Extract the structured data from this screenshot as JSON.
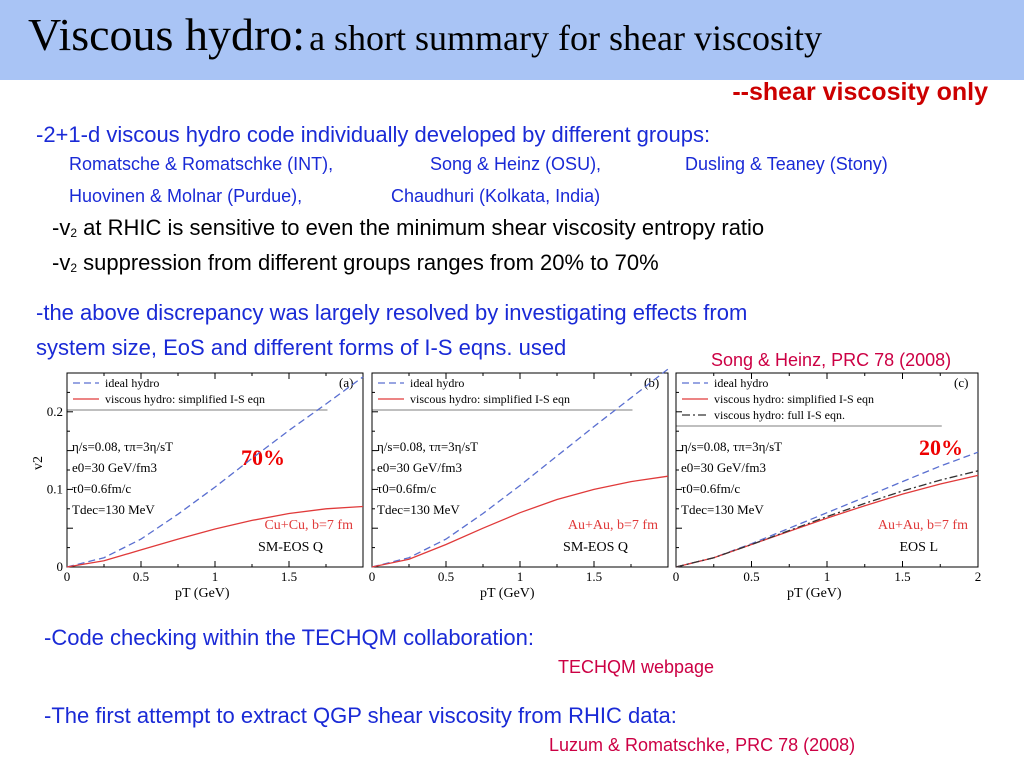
{
  "slide": {
    "title_main": "Viscous hydro:",
    "title_sub": "a short summary for shear viscosity",
    "subtitle": "--shear viscosity only",
    "line1": "-2+1-d viscous hydro code individually developed by different groups:",
    "groups_row1": [
      "Romatsche & Romatschke (INT),",
      "Song & Heinz (OSU),",
      "Dusling & Teaney (Stony)"
    ],
    "groups_row2": [
      "Huovinen & Molnar (Purdue),",
      "Chaudhuri (Kolkata, India)"
    ],
    "v2_a_pre": "-v",
    "v2_a_sub": "2",
    "v2_a_post": " at RHIC is sensitive to even the minimum shear viscosity entropy ratio",
    "v2_b_pre": "-v",
    "v2_b_sub": "2",
    "v2_b_post": " suppression from different groups ranges from 20% to 70%",
    "discrepancy_1": "-the above discrepancy was largely resolved by investigating effects from",
    "discrepancy_2": "system size, EoS and different forms of I-S eqns. used",
    "ref_song": "Song & Heinz,  PRC 78 (2008)",
    "code_check": "-Code checking within the TECHQM collaboration:",
    "techqm": "TECHQM webpage",
    "first_attempt": "-The first attempt to extract QGP shear viscosity from RHIC data:",
    "ref_luzum": "Luzum & Romatschke, PRC 78 (2008)"
  },
  "colors": {
    "title_bar": "#a9c4f5",
    "text_blue": "#1a2ad6",
    "text_red": "#cc0044",
    "ideal": "#5a6fd0",
    "viscous": "#e03a3a",
    "full": "#333333"
  },
  "chart_data": [
    {
      "type": "line",
      "panel": "(a)",
      "xlabel": "p_T (GeV)",
      "ylabel": "v_2",
      "xlim": [
        0,
        2
      ],
      "ylim": [
        0,
        0.25
      ],
      "x_ticks": [
        "0",
        "0.5",
        "1",
        "1.5"
      ],
      "y_ticks": [
        "0",
        "0.1",
        "0.2"
      ],
      "legend": [
        "ideal hydro",
        "viscous hydro: simplified I-S eqn"
      ],
      "params": [
        "η/s=0.08,   τπ=3η/sT",
        "e0=30 GeV/fm3",
        "τ0=0.6fm/c",
        "Tdec=130 MeV"
      ],
      "system": "Cu+Cu, b=7 fm",
      "eos": "SM-EOS Q",
      "annotation": "70%",
      "series": [
        {
          "name": "ideal hydro",
          "x": [
            0,
            0.25,
            0.5,
            0.75,
            1.0,
            1.25,
            1.5,
            1.75,
            2.0
          ],
          "y": [
            0,
            0.012,
            0.036,
            0.068,
            0.103,
            0.14,
            0.176,
            0.21,
            0.245
          ]
        },
        {
          "name": "viscous hydro: simplified I-S eqn",
          "x": [
            0,
            0.25,
            0.5,
            0.75,
            1.0,
            1.25,
            1.5,
            1.75,
            2.0
          ],
          "y": [
            0,
            0.008,
            0.022,
            0.036,
            0.049,
            0.06,
            0.069,
            0.075,
            0.078
          ]
        }
      ]
    },
    {
      "type": "line",
      "panel": "(b)",
      "xlabel": "p_T (GeV)",
      "ylabel": "v_2",
      "xlim": [
        0,
        2
      ],
      "ylim": [
        0,
        0.25
      ],
      "x_ticks": [
        "0",
        "0.5",
        "1",
        "1.5"
      ],
      "legend": [
        "ideal hydro",
        "viscous hydro: simplified I-S eqn"
      ],
      "params": [
        "η/s=0.08,   τπ=3η/sT",
        "e0=30 GeV/fm3",
        "τ0=0.6fm/c",
        "Tdec=130 MeV"
      ],
      "system": "Au+Au, b=7 fm",
      "eos": "SM-EOS Q",
      "series": [
        {
          "name": "ideal hydro",
          "x": [
            0,
            0.25,
            0.5,
            0.75,
            1.0,
            1.25,
            1.5,
            1.75,
            2.0
          ],
          "y": [
            0,
            0.012,
            0.036,
            0.069,
            0.105,
            0.143,
            0.181,
            0.218,
            0.255
          ]
        },
        {
          "name": "viscous hydro: simplified I-S eqn",
          "x": [
            0,
            0.25,
            0.5,
            0.75,
            1.0,
            1.25,
            1.5,
            1.75,
            2.0
          ],
          "y": [
            0,
            0.01,
            0.029,
            0.05,
            0.07,
            0.087,
            0.1,
            0.11,
            0.117
          ]
        }
      ]
    },
    {
      "type": "line",
      "panel": "(c)",
      "xlabel": "p_T (GeV)",
      "ylabel": "v_2",
      "xlim": [
        0,
        2
      ],
      "ylim": [
        0,
        0.25
      ],
      "x_ticks": [
        "0",
        "0.5",
        "1",
        "1.5",
        "2"
      ],
      "legend": [
        "ideal hydro",
        "viscous hydro: simplified I-S eqn",
        "viscous hydro: full I-S eqn."
      ],
      "params": [
        "η/s=0.08,   τπ=3η/sT",
        "e0=30 GeV/fm3",
        "τ0=0.6fm/c",
        "Tdec=130 MeV"
      ],
      "system": "Au+Au, b=7 fm",
      "eos": "EOS L",
      "annotation": "20%",
      "series": [
        {
          "name": "ideal hydro",
          "x": [
            0,
            0.25,
            0.5,
            0.75,
            1.0,
            1.25,
            1.5,
            1.75,
            2.0
          ],
          "y": [
            0,
            0.012,
            0.03,
            0.05,
            0.07,
            0.09,
            0.11,
            0.13,
            0.148
          ]
        },
        {
          "name": "viscous hydro: simplified I-S eqn",
          "x": [
            0,
            0.25,
            0.5,
            0.75,
            1.0,
            1.25,
            1.5,
            1.75,
            2.0
          ],
          "y": [
            0,
            0.012,
            0.029,
            0.046,
            0.063,
            0.079,
            0.094,
            0.107,
            0.118
          ]
        },
        {
          "name": "viscous hydro: full I-S eqn.",
          "x": [
            0,
            0.25,
            0.5,
            0.75,
            1.0,
            1.25,
            1.5,
            1.75,
            2.0
          ],
          "y": [
            0,
            0.012,
            0.029,
            0.047,
            0.065,
            0.082,
            0.098,
            0.112,
            0.124
          ]
        }
      ]
    }
  ]
}
